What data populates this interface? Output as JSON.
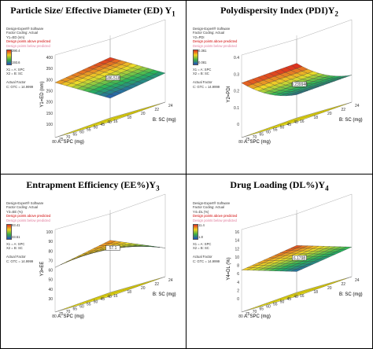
{
  "panels": [
    {
      "title": "Particle Size/ Effective Diameter (ED) Y",
      "title_sub": "1",
      "legend": [
        "Design-Expert® Software",
        "Factor Coding: Actual",
        "Y1=ED (nm)",
        "Design points above predicted",
        "Design points below predicted",
        "390.4",
        "193.6",
        "X1 = A: SPC",
        "X2 = B: SC",
        "Actual Factor",
        "C: GTC = 14.9999"
      ],
      "xlabel": "A: SPC (mg)",
      "ylabel": "B: SC (mg)",
      "zlabel": "Y1=ED (nm)",
      "zticks": [
        "100",
        "150",
        "200",
        "250",
        "300",
        "350",
        "400"
      ],
      "x_ticks": [
        "80",
        "75",
        "70",
        "65",
        "60",
        "55",
        "50",
        "45",
        "40"
      ],
      "y_ticks": [
        "16",
        "18",
        "20",
        "22",
        "24"
      ],
      "flag": "186.518"
    },
    {
      "title": "Polydispersity Index (PDI)Y",
      "title_sub": "2",
      "legend": [
        "Design-Expert® Software",
        "Factor Coding: Actual",
        "Y2=PDI",
        "Design points above predicted",
        "Design points below predicted",
        "0.361",
        "0.081",
        "X1 = A: SPC",
        "X2 = B: SC",
        "Actual Factor",
        "C: GTC = 14.9999"
      ],
      "xlabel": "A: SPC (mg)",
      "ylabel": "B: SC (mg)",
      "zlabel": "Y2=PDI",
      "zticks": [
        "0",
        "0.1",
        "0.2",
        "0.3",
        "0.4"
      ],
      "x_ticks": [
        "80",
        "75",
        "70",
        "65",
        "60",
        "55",
        "50",
        "45",
        "40"
      ],
      "y_ticks": [
        "16",
        "18",
        "20",
        "22",
        "24"
      ],
      "flag": "0.239946"
    },
    {
      "title": "Entrapment Efficiency (EE%)Y",
      "title_sub": "3",
      "legend": [
        "Design-Expert® Software",
        "Factor Coding: Actual",
        "Y3=EE (%)",
        "Design points above predicted",
        "Design points below predicted",
        "93.41",
        "33.51",
        "X1 = A: SPC",
        "X2 = B: SC",
        "Actual Factor",
        "C: GTC = 14.9999"
      ],
      "xlabel": "A: SPC (mg)",
      "ylabel": "B: SC (mg)",
      "zlabel": "Y3=EE",
      "zticks": [
        "30",
        "40",
        "50",
        "60",
        "70",
        "80",
        "90",
        "100"
      ],
      "x_ticks": [
        "80",
        "75",
        "70",
        "65",
        "60",
        "55",
        "50",
        "45",
        "40"
      ],
      "y_ticks": [
        "16",
        "18",
        "20",
        "22",
        "24"
      ],
      "flag": "57.1"
    },
    {
      "title": "Drug Loading (DL%)Y",
      "title_sub": "4",
      "legend": [
        "Design-Expert® Software",
        "Factor Coding: Actual",
        "Y4=DL (%)",
        "Design points above predicted",
        "Design points below predicted",
        "11.4",
        "1.8",
        "X1 = A: SPC",
        "X2 = B: SC",
        "Actual Factor",
        "C: GTC = 14.9999"
      ],
      "xlabel": "A: SPC (mg)",
      "ylabel": "B: SC (mg)",
      "zlabel": "Y4=DL (%)",
      "zticks": [
        "0",
        "2",
        "4",
        "6",
        "8",
        "10",
        "12",
        "14",
        "16"
      ],
      "x_ticks": [
        "80",
        "75",
        "70",
        "65",
        "60",
        "55",
        "50",
        "45",
        "40"
      ],
      "y_ticks": [
        "16",
        "18",
        "20",
        "22",
        "24"
      ],
      "flag": "6.1798"
    }
  ],
  "chart_data": [
    {
      "type": "heatmap",
      "title": "Particle Size/ Effective Diameter (ED) Y1",
      "xlabel": "A: SPC (mg)",
      "ylabel": "B: SC (mg)",
      "zlabel": "Y1=ED (nm)",
      "x_range": [
        40,
        80
      ],
      "y_range": [
        16,
        24
      ],
      "z_range": [
        193.6,
        390.4
      ],
      "flagged_value": 186.518
    },
    {
      "type": "heatmap",
      "title": "Polydispersity Index (PDI)Y2",
      "xlabel": "A: SPC (mg)",
      "ylabel": "B: SC (mg)",
      "zlabel": "Y2=PDI",
      "x_range": [
        40,
        80
      ],
      "y_range": [
        16,
        24
      ],
      "z_range": [
        0.081,
        0.361
      ],
      "flagged_value": 0.239946
    },
    {
      "type": "heatmap",
      "title": "Entrapment Efficiency (EE%)Y3",
      "xlabel": "A: SPC (mg)",
      "ylabel": "B: SC (mg)",
      "zlabel": "Y3=EE",
      "x_range": [
        40,
        80
      ],
      "y_range": [
        16,
        24
      ],
      "z_range": [
        33.51,
        93.41
      ],
      "flagged_value": 57.1
    },
    {
      "type": "heatmap",
      "title": "Drug Loading (DL%)Y4",
      "xlabel": "A: SPC (mg)",
      "ylabel": "B: SC (mg)",
      "zlabel": "Y4=DL (%)",
      "x_range": [
        40,
        80
      ],
      "y_range": [
        16,
        24
      ],
      "z_range": [
        1.8,
        11.4
      ],
      "flagged_value": 6.1798
    }
  ]
}
